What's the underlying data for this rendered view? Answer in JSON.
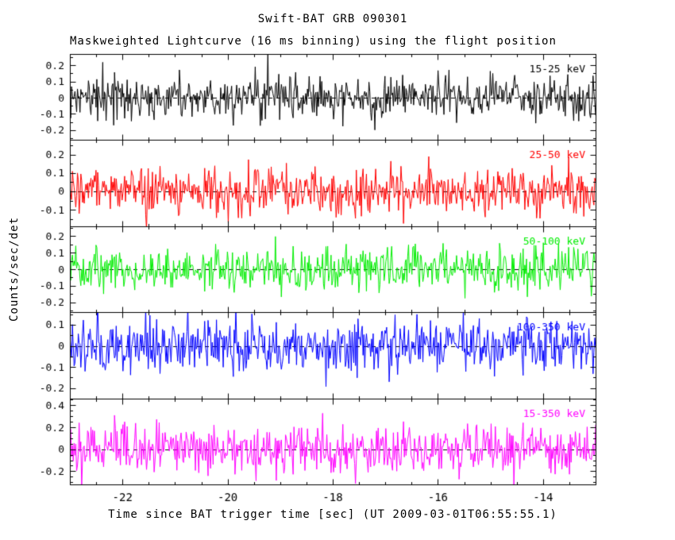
{
  "title": "Swift-BAT GRB 090301",
  "subtitle": "Maskweighted Lightcurve (16 ms binning) using the flight position",
  "xlabel": "Time since BAT trigger time [sec] (UT 2009-03-01T06:55:55.1)",
  "ylabel": "Counts/sec/det",
  "chart_data": {
    "type": "line",
    "title": "Swift-BAT GRB 090301",
    "subtitle": "Maskweighted Lightcurve (16 ms binning) using the flight position",
    "xlabel": "Time since BAT trigger time [sec] (UT 2009-03-01T06:55:55.1)",
    "ylabel": "Counts/sec/det",
    "grid": false,
    "background_color": "#ffffff",
    "axis_color": "#000000",
    "x_range": [
      -23,
      -13
    ],
    "x_major_ticks": [
      -22,
      -20,
      -18,
      -16,
      -14
    ],
    "x_minor_step": 0.5,
    "binning_ms": 16,
    "n_points": 625,
    "zero_line_style": "dashed",
    "panels": [
      {
        "label": "15-25 keV",
        "color": "#000000",
        "ylim": [
          -0.26,
          0.27
        ],
        "major_ticks": [
          -0.2,
          -0.1,
          0,
          0.1,
          0.2
        ],
        "minor_step": 0.05,
        "mean": 0,
        "noise_sigma": 0.065,
        "seed": 11
      },
      {
        "label": "25-50 keV",
        "color": "#ff0000",
        "ylim": [
          -0.19,
          0.28
        ],
        "major_ticks": [
          -0.1,
          0,
          0.1,
          0.2
        ],
        "minor_step": 0.05,
        "mean": 0,
        "noise_sigma": 0.065,
        "seed": 22
      },
      {
        "label": "50-100 keV",
        "color": "#00ee00",
        "ylim": [
          -0.26,
          0.26
        ],
        "major_ticks": [
          -0.2,
          -0.1,
          0,
          0.1,
          0.2
        ],
        "minor_step": 0.05,
        "mean": 0,
        "noise_sigma": 0.07,
        "seed": 33
      },
      {
        "label": "100-350 keV",
        "color": "#0000ff",
        "ylim": [
          -0.25,
          0.16
        ],
        "major_ticks": [
          -0.2,
          -0.1,
          0,
          0.1
        ],
        "minor_step": 0.05,
        "mean": 0,
        "noise_sigma": 0.062,
        "seed": 44
      },
      {
        "label": "15-350 keV",
        "color": "#ff00ff",
        "ylim": [
          -0.32,
          0.46
        ],
        "major_ticks": [
          -0.2,
          0,
          0.2,
          0.4
        ],
        "minor_step": 0.05,
        "mean": 0,
        "noise_sigma": 0.115,
        "seed": 55
      }
    ]
  }
}
